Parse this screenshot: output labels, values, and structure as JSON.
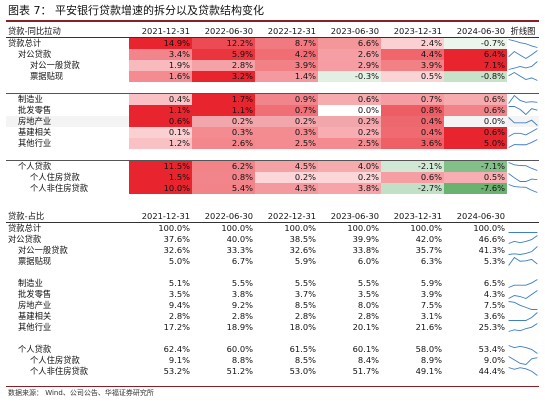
{
  "title": "图表 7：  平安银行贷款增速的拆分以及贷款结构变化",
  "source": "数据来源：  Wind、公司公告、华福证券研究所",
  "colors": {
    "title_rule": "#8a1f24",
    "heat_red": "#e8212b",
    "heat_green": "#3a9a43",
    "spark": "#3f7fc5"
  },
  "table1": {
    "section_label": "贷款-同比拉动",
    "headers": [
      "2021-12-31",
      "2022-06-30",
      "2022-12-31",
      "2023-06-30",
      "2023-12-31",
      "2024-06-30"
    ],
    "spark_header": "折线图",
    "rows": [
      {
        "label": "贷款总计",
        "indent": 0,
        "values": [
          "14.9%",
          "12.2%",
          "8.7%",
          "6.6%",
          "2.4%",
          "-0.7%"
        ],
        "nums": [
          14.9,
          12.2,
          8.7,
          6.6,
          2.4,
          -0.7
        ]
      },
      {
        "label": "对公贷款",
        "indent": 1,
        "values": [
          "3.4%",
          "5.9%",
          "4.2%",
          "2.6%",
          "4.4%",
          "6.4%"
        ],
        "nums": [
          3.4,
          5.9,
          4.2,
          2.6,
          4.4,
          6.4
        ]
      },
      {
        "label": "对公一般贷款",
        "indent": 2,
        "values": [
          "1.9%",
          "2.8%",
          "3.9%",
          "2.9%",
          "3.9%",
          "7.1%"
        ],
        "nums": [
          1.9,
          2.8,
          3.9,
          2.9,
          3.9,
          7.1
        ]
      },
      {
        "label": "票据贴现",
        "indent": 2,
        "values": [
          "1.6%",
          "3.2%",
          "1.4%",
          "-0.3%",
          "0.5%",
          "-0.8%"
        ],
        "nums": [
          1.6,
          3.2,
          1.4,
          -0.3,
          0.5,
          -0.8
        ]
      },
      {
        "sep": true
      },
      {
        "label": "制造业",
        "indent": 1,
        "values": [
          "0.4%",
          "1.7%",
          "0.9%",
          "0.6%",
          "0.7%",
          "0.6%"
        ],
        "nums": [
          0.4,
          1.7,
          0.9,
          0.6,
          0.7,
          0.6
        ],
        "sepline": true
      },
      {
        "label": "批发零售",
        "indent": 1,
        "values": [
          "1.1%",
          "1.1%",
          "0.7%",
          "0.0%",
          "0.8%",
          "0.6%"
        ],
        "nums": [
          1.1,
          1.1,
          0.7,
          0.0,
          0.8,
          0.6
        ]
      },
      {
        "label": "房地产业",
        "indent": 1,
        "values": [
          "0.6%",
          "0.2%",
          "0.2%",
          "0.2%",
          "0.4%",
          "0.0%"
        ],
        "nums": [
          0.6,
          0.2,
          0.2,
          0.2,
          0.4,
          0.0
        ],
        "banded": true
      },
      {
        "label": "基建相关",
        "indent": 1,
        "values": [
          "0.1%",
          "0.3%",
          "0.3%",
          "0.2%",
          "0.4%",
          "0.6%"
        ],
        "nums": [
          0.1,
          0.3,
          0.3,
          0.2,
          0.4,
          0.6
        ]
      },
      {
        "label": "其他行业",
        "indent": 1,
        "values": [
          "1.2%",
          "2.6%",
          "2.5%",
          "2.5%",
          "3.6%",
          "5.0%"
        ],
        "nums": [
          1.2,
          2.6,
          2.5,
          2.5,
          3.6,
          5.0
        ]
      },
      {
        "sep": true
      },
      {
        "label": "个人贷款",
        "indent": 1,
        "values": [
          "11.5%",
          "6.2%",
          "4.5%",
          "4.0%",
          "-2.1%",
          "-7.1%"
        ],
        "nums": [
          11.5,
          6.2,
          4.5,
          4.0,
          -2.1,
          -7.1
        ],
        "sepline": true
      },
      {
        "label": "个人住房贷款",
        "indent": 2,
        "values": [
          "1.5%",
          "0.8%",
          "0.2%",
          "0.2%",
          "0.6%",
          "0.5%"
        ],
        "nums": [
          1.5,
          0.8,
          0.2,
          0.2,
          0.6,
          0.5
        ]
      },
      {
        "label": "个人非住房贷款",
        "indent": 2,
        "values": [
          "10.0%",
          "5.4%",
          "4.3%",
          "3.8%",
          "-2.7%",
          "-7.6%"
        ],
        "nums": [
          10.0,
          5.4,
          4.3,
          3.8,
          -2.7,
          -7.6
        ]
      }
    ]
  },
  "table2": {
    "section_label": "贷款-占比",
    "headers": [
      "2021-12-31",
      "2022-06-30",
      "2022-12-31",
      "2023-06-30",
      "2023-12-31",
      "2024-06-30"
    ],
    "rows": [
      {
        "label": "贷款总计",
        "indent": 0,
        "values": [
          "100.0%",
          "100.0%",
          "100.0%",
          "100.0%",
          "100.0%",
          "100.0%"
        ],
        "nums": [
          100,
          100,
          100,
          100,
          100,
          100
        ]
      },
      {
        "label": "对公贷款",
        "indent": 0,
        "values": [
          "37.6%",
          "40.0%",
          "38.5%",
          "39.9%",
          "42.0%",
          "46.6%"
        ],
        "nums": [
          37.6,
          40.0,
          38.5,
          39.9,
          42.0,
          46.6
        ]
      },
      {
        "label": "对公一般贷款",
        "indent": 1,
        "values": [
          "32.6%",
          "33.3%",
          "32.6%",
          "33.8%",
          "35.7%",
          "41.3%"
        ],
        "nums": [
          32.6,
          33.3,
          32.6,
          33.8,
          35.7,
          41.3
        ]
      },
      {
        "label": "票据贴现",
        "indent": 1,
        "values": [
          "5.0%",
          "6.7%",
          "5.9%",
          "6.0%",
          "6.3%",
          "5.3%"
        ],
        "nums": [
          5.0,
          6.7,
          5.9,
          6.0,
          6.3,
          5.3
        ]
      },
      {
        "sep": true
      },
      {
        "label": "制造业",
        "indent": 1,
        "values": [
          "5.1%",
          "5.5%",
          "5.5%",
          "5.5%",
          "5.9%",
          "6.5%"
        ],
        "nums": [
          5.1,
          5.5,
          5.5,
          5.5,
          5.9,
          6.5
        ]
      },
      {
        "label": "批发零售",
        "indent": 1,
        "values": [
          "3.5%",
          "3.8%",
          "3.7%",
          "3.5%",
          "3.9%",
          "4.3%"
        ],
        "nums": [
          3.5,
          3.8,
          3.7,
          3.5,
          3.9,
          4.3
        ]
      },
      {
        "label": "房地产业",
        "indent": 1,
        "values": [
          "9.4%",
          "9.2%",
          "8.5%",
          "8.0%",
          "7.5%",
          "7.5%"
        ],
        "nums": [
          9.4,
          9.2,
          8.5,
          8.0,
          7.5,
          7.5
        ]
      },
      {
        "label": "基建相关",
        "indent": 1,
        "values": [
          "2.8%",
          "2.8%",
          "2.8%",
          "2.8%",
          "3.1%",
          "3.6%"
        ],
        "nums": [
          2.8,
          2.8,
          2.8,
          2.8,
          3.1,
          3.6
        ]
      },
      {
        "label": "其他行业",
        "indent": 1,
        "values": [
          "17.2%",
          "18.9%",
          "18.0%",
          "20.1%",
          "21.6%",
          "25.3%"
        ],
        "nums": [
          17.2,
          18.9,
          18.0,
          20.1,
          21.6,
          25.3
        ]
      },
      {
        "sep": true
      },
      {
        "label": "个人贷款",
        "indent": 1,
        "values": [
          "62.4%",
          "60.0%",
          "61.5%",
          "60.1%",
          "58.0%",
          "53.4%"
        ],
        "nums": [
          62.4,
          60.0,
          61.5,
          60.1,
          58.0,
          53.4
        ]
      },
      {
        "label": "个人住房贷款",
        "indent": 2,
        "values": [
          "9.1%",
          "8.8%",
          "8.5%",
          "8.4%",
          "8.9%",
          "9.0%"
        ],
        "nums": [
          9.1,
          8.8,
          8.5,
          8.4,
          8.9,
          9.0
        ]
      },
      {
        "label": "个人非住房贷款",
        "indent": 2,
        "values": [
          "53.2%",
          "51.2%",
          "53.0%",
          "51.7%",
          "49.1%",
          "44.4%"
        ],
        "nums": [
          53.2,
          51.2,
          53.0,
          51.7,
          49.1,
          44.4
        ]
      }
    ]
  }
}
